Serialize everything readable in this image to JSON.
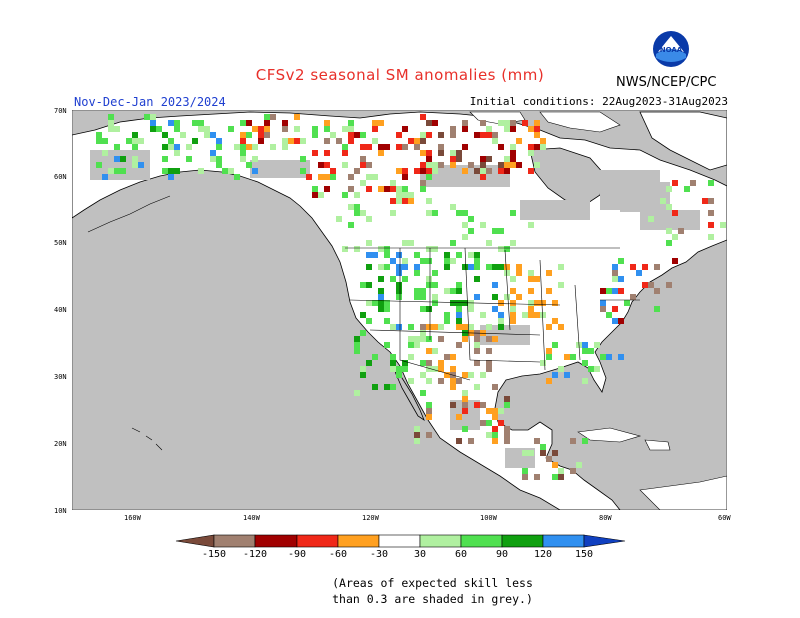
{
  "header": {
    "title": "CFSv2 seasonal SM anomalies (mm)",
    "period": "Nov-Dec-Jan 2023/2024",
    "initial_conditions": "Initial conditions: 22Aug2023-31Aug2023",
    "agency": "NWS/NCEP/CPC",
    "logo_text": "NOAA"
  },
  "map": {
    "lat_labels": [
      "70N",
      "60N",
      "50N",
      "40N",
      "30N",
      "20N",
      "10N"
    ],
    "lon_labels": [
      "160W",
      "140W",
      "120W",
      "100W",
      "80W",
      "60W"
    ],
    "ocean_color": "#c0c0c0",
    "land_nonskill_color": "#ffffff"
  },
  "legend": {
    "labels": [
      "-150",
      "-120",
      "-90",
      "-60",
      "-30",
      "30",
      "60",
      "90",
      "120",
      "150"
    ],
    "colors": {
      "lt_-150": "#7a4a3a",
      "-150_-120": "#a08070",
      "-120_-90": "#a00000",
      "-90_-60": "#e02010",
      "-60_-30": "#ff6000",
      "-30_0": "#f5b040",
      "0_30": "#ffffff",
      "30_60": "#b0f0a0",
      "60_90": "#50e050",
      "90_120": "#10a010",
      "120_150": "#3090f0",
      "gt_150": "#1040c0"
    }
  },
  "footnote": {
    "line1": "(Areas of expected skill less",
    "line2": "than 0.3 are shaded in grey.)"
  }
}
